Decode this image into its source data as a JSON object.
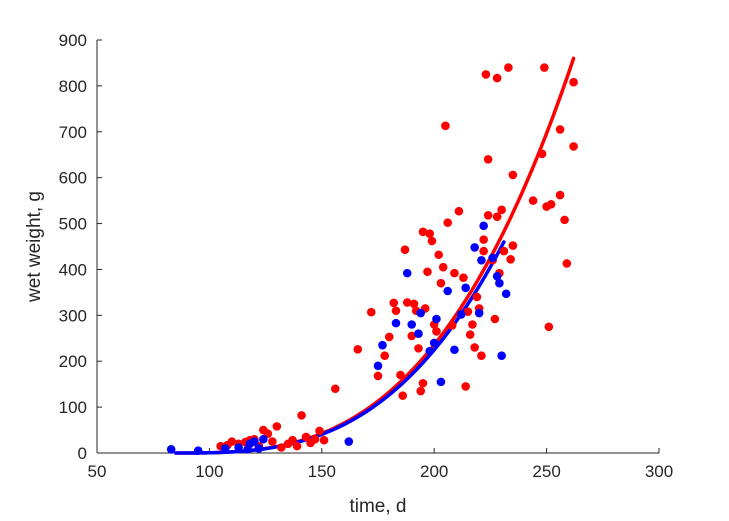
{
  "chart_data": {
    "type": "scatter",
    "title": "",
    "xlabel": "time, d",
    "ylabel": "wet weight, g",
    "xlim": [
      50,
      300
    ],
    "ylim": [
      0,
      900
    ],
    "xticks": [
      50,
      100,
      150,
      200,
      250,
      300
    ],
    "yticks": [
      0,
      100,
      200,
      300,
      400,
      500,
      600,
      700,
      800,
      900
    ],
    "grid": false,
    "colors": {
      "red": "#ff0000",
      "blue": "#0000ff",
      "axis": "#262626"
    },
    "series": [
      {
        "color": "#ff0000",
        "points": [
          [
            105,
            15
          ],
          [
            108,
            17
          ],
          [
            110,
            25
          ],
          [
            113,
            20
          ],
          [
            116,
            24
          ],
          [
            118,
            28
          ],
          [
            120,
            30
          ],
          [
            122,
            15
          ],
          [
            124,
            50
          ],
          [
            126,
            42
          ],
          [
            128,
            25
          ],
          [
            130,
            58
          ],
          [
            132,
            12
          ],
          [
            135,
            20
          ],
          [
            137,
            28
          ],
          [
            139,
            15
          ],
          [
            141,
            82
          ],
          [
            143,
            35
          ],
          [
            145,
            22
          ],
          [
            147,
            30
          ],
          [
            149,
            48
          ],
          [
            151,
            28
          ],
          [
            156,
            140
          ],
          [
            166,
            226
          ],
          [
            172,
            307
          ],
          [
            175,
            168
          ],
          [
            178,
            212
          ],
          [
            180,
            253
          ],
          [
            182,
            327
          ],
          [
            183,
            310
          ],
          [
            185,
            170
          ],
          [
            186,
            125
          ],
          [
            187,
            443
          ],
          [
            188,
            328
          ],
          [
            190,
            255
          ],
          [
            191,
            325
          ],
          [
            192,
            310
          ],
          [
            193,
            228
          ],
          [
            194,
            135
          ],
          [
            195,
            482
          ],
          [
            195,
            152
          ],
          [
            196,
            315
          ],
          [
            197,
            395
          ],
          [
            198,
            478
          ],
          [
            199,
            462
          ],
          [
            200,
            280
          ],
          [
            201,
            265
          ],
          [
            202,
            432
          ],
          [
            203,
            370
          ],
          [
            204,
            405
          ],
          [
            205,
            713
          ],
          [
            206,
            502
          ],
          [
            208,
            278
          ],
          [
            209,
            392
          ],
          [
            211,
            527
          ],
          [
            213,
            382
          ],
          [
            214,
            145
          ],
          [
            215,
            308
          ],
          [
            216,
            258
          ],
          [
            217,
            280
          ],
          [
            218,
            230
          ],
          [
            219,
            340
          ],
          [
            220,
            315
          ],
          [
            221,
            212
          ],
          [
            222,
            440
          ],
          [
            222,
            465
          ],
          [
            223,
            825
          ],
          [
            224,
            518
          ],
          [
            224,
            640
          ],
          [
            226,
            420
          ],
          [
            227,
            292
          ],
          [
            228,
            817
          ],
          [
            228,
            515
          ],
          [
            229,
            392
          ],
          [
            230,
            530
          ],
          [
            231,
            440
          ],
          [
            233,
            840
          ],
          [
            234,
            422
          ],
          [
            235,
            606
          ],
          [
            235,
            452
          ],
          [
            244,
            550
          ],
          [
            248,
            652
          ],
          [
            249,
            840
          ],
          [
            250,
            537
          ],
          [
            251,
            275
          ],
          [
            252,
            542
          ],
          [
            256,
            705
          ],
          [
            256,
            562
          ],
          [
            258,
            508
          ],
          [
            259,
            413
          ],
          [
            262,
            808
          ],
          [
            262,
            668
          ]
        ]
      },
      {
        "color": "#0000ff",
        "points": [
          [
            83,
            8
          ],
          [
            95,
            5
          ],
          [
            107,
            10
          ],
          [
            113,
            12
          ],
          [
            117,
            8
          ],
          [
            118,
            20
          ],
          [
            120,
            25
          ],
          [
            122,
            10
          ],
          [
            124,
            30
          ],
          [
            162,
            25
          ],
          [
            175,
            190
          ],
          [
            177,
            235
          ],
          [
            183,
            283
          ],
          [
            188,
            392
          ],
          [
            190,
            280
          ],
          [
            193,
            260
          ],
          [
            194,
            305
          ],
          [
            198,
            222
          ],
          [
            200,
            240
          ],
          [
            201,
            292
          ],
          [
            203,
            155
          ],
          [
            206,
            353
          ],
          [
            209,
            225
          ],
          [
            212,
            302
          ],
          [
            214,
            360
          ],
          [
            218,
            448
          ],
          [
            220,
            305
          ],
          [
            221,
            420
          ],
          [
            222,
            495
          ],
          [
            226,
            425
          ],
          [
            228,
            385
          ],
          [
            229,
            370
          ],
          [
            230,
            212
          ],
          [
            232,
            347
          ]
        ]
      }
    ],
    "curves": [
      {
        "color": "#ff0000",
        "x_start": 85,
        "x_end": 262,
        "y_end": 860
      },
      {
        "color": "#0000ff",
        "x_start": 85,
        "x_end": 231,
        "y_end": 460
      }
    ]
  }
}
